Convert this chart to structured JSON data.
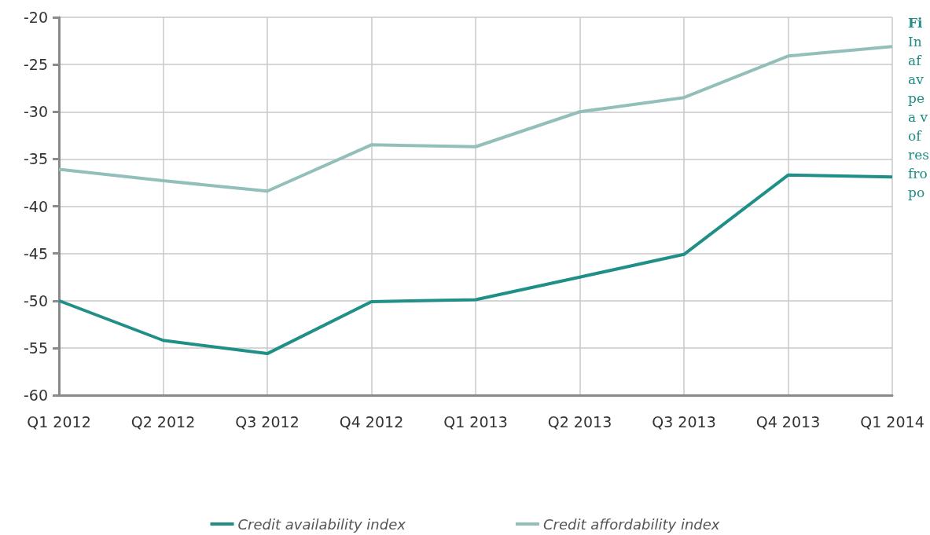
{
  "chart_data": {
    "type": "line",
    "categories": [
      "Q1 2012",
      "Q2 2012",
      "Q3 2012",
      "Q4 2012",
      "Q1 2013",
      "Q2 2013",
      "Q3 2013",
      "Q4 2013",
      "Q1 2014"
    ],
    "series": [
      {
        "name": "Credit availability index",
        "color": "#1f8f87",
        "values": [
          -50,
          -54.2,
          -55.6,
          -50.1,
          -49.9,
          -47.5,
          -45.1,
          -36.7,
          -36.9
        ]
      },
      {
        "name": "Credit affordability index",
        "color": "#93bfbb",
        "values": [
          -36.1,
          -37.3,
          -38.4,
          -33.5,
          -33.7,
          -30.0,
          -28.5,
          -24.1,
          -23.1
        ]
      }
    ],
    "ylim": [
      -60,
      -20
    ],
    "yticks": [
      -60,
      -55,
      -50,
      -45,
      -40,
      -35,
      -30,
      -25,
      -20
    ],
    "grid": true,
    "legend": "bottom",
    "marker": "none",
    "line_style": "solid",
    "annotations": [
      "Fi\nIn\naf\nav\npe\na v\nof\nres\nfro\npo"
    ]
  }
}
